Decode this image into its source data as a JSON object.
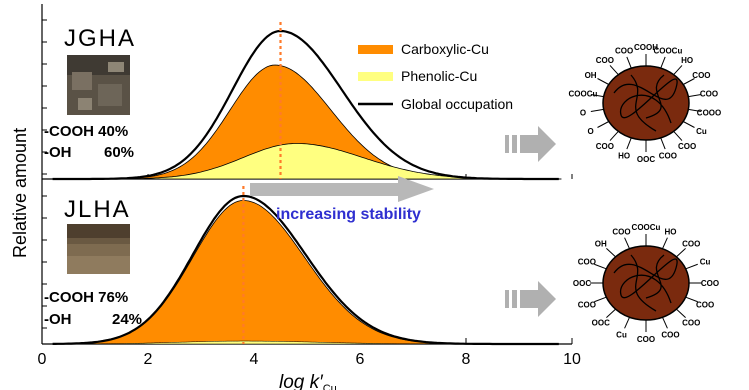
{
  "chart_data": [
    {
      "type": "area",
      "panel": "JGHA",
      "title": "JGHA",
      "ylabel": "Relative amount",
      "xlim": [
        0,
        10
      ],
      "peak_log_k": 4.5,
      "composition": [
        {
          "group": "-COOH",
          "percent": "40%"
        },
        {
          "group": "-OH",
          "percent": "60%"
        }
      ],
      "series": [
        {
          "name": "Global occupation",
          "color": "#000000",
          "peak_x": 4.5,
          "peak_y": 1.0
        },
        {
          "name": "Carboxylic-Cu",
          "color": "#ff8c00",
          "peak_x": 4.4,
          "peak_y": 0.77
        },
        {
          "name": "Phenolic-Cu",
          "color": "#ffff80",
          "peak_x": 4.8,
          "peak_y": 0.24
        }
      ]
    },
    {
      "type": "area",
      "panel": "JLHA",
      "title": "JLHA",
      "xlabel": "log k′",
      "xlabel_sub": "Cu",
      "xlim": [
        0,
        10
      ],
      "xticks": [
        0,
        2,
        4,
        6,
        8,
        10
      ],
      "peak_log_k": 3.8,
      "composition": [
        {
          "group": "-COOH",
          "percent": "76%"
        },
        {
          "group": "-OH",
          "percent": "24%"
        }
      ],
      "annotation": "increasing stability",
      "series": [
        {
          "name": "Global occupation",
          "color": "#000000",
          "peak_x": 3.8,
          "peak_y": 1.0
        },
        {
          "name": "Carboxylic-Cu",
          "color": "#ff8c00",
          "peak_x": 3.8,
          "peak_y": 0.97
        },
        {
          "name": "Phenolic-Cu",
          "color": "#ffff80",
          "peak_x": 3.8,
          "peak_y": 0.02
        }
      ]
    }
  ],
  "legend": {
    "items": [
      {
        "label": "Carboxylic-Cu",
        "color": "#ff8c00"
      },
      {
        "label": "Phenolic-Cu",
        "color": "#ffff80"
      },
      {
        "label": "Global occupation",
        "color": "#000000"
      }
    ]
  },
  "molecule_top": {
    "labels": [
      "COOH",
      "COOCu",
      "HO",
      "COO",
      "COO",
      "COOO",
      "Cu",
      "COO",
      "COO",
      "OOC",
      "HO",
      "COO",
      "O",
      "O",
      "COOCu",
      "OH",
      "COO",
      "COO"
    ]
  },
  "molecule_bottom": {
    "labels": [
      "COOCu",
      "HO",
      "COO",
      "Cu",
      "COO",
      "COO",
      "COO",
      "COO",
      "COO",
      "Cu",
      "OOC",
      "COO",
      "OOC",
      "COO",
      "OH",
      "COO"
    ]
  }
}
